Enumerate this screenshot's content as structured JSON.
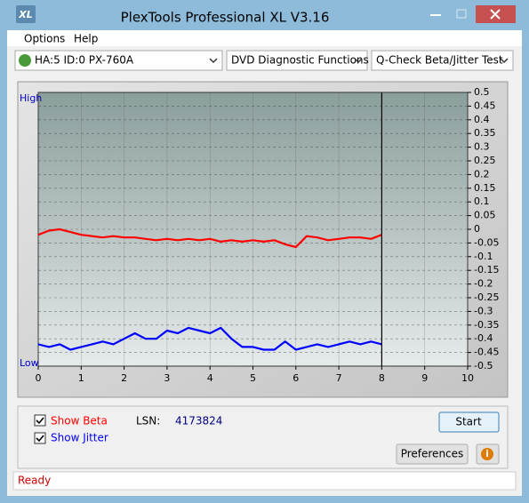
{
  "window": {
    "icon_text": "XL",
    "title": "PlexTools Professional XL V3.16"
  },
  "menu": [
    "Options",
    "Help"
  ],
  "toolbar": {
    "drive": "HA:5 ID:0  PX-760A",
    "function": "DVD Diagnostic Functions",
    "test": "Q-Check Beta/Jitter Test"
  },
  "chart_data": {
    "type": "line",
    "high_label": "High",
    "low_label": "Low",
    "x": [
      0,
      0.25,
      0.5,
      0.75,
      1,
      1.25,
      1.5,
      1.75,
      2,
      2.25,
      2.5,
      2.75,
      3,
      3.25,
      3.5,
      3.75,
      4,
      4.25,
      4.5,
      4.75,
      5,
      5.25,
      5.5,
      5.75,
      6,
      6.25,
      6.5,
      6.75,
      7,
      7.25,
      7.5,
      7.75,
      8
    ],
    "series": [
      {
        "name": "Show Beta",
        "color": "#ff0000",
        "values": [
          -0.02,
          -0.005,
          0,
          -0.01,
          -0.02,
          -0.025,
          -0.03,
          -0.025,
          -0.03,
          -0.03,
          -0.035,
          -0.04,
          -0.035,
          -0.04,
          -0.035,
          -0.04,
          -0.035,
          -0.045,
          -0.04,
          -0.045,
          -0.04,
          -0.045,
          -0.04,
          -0.055,
          -0.065,
          -0.025,
          -0.03,
          -0.04,
          -0.035,
          -0.03,
          -0.03,
          -0.035,
          -0.02
        ]
      },
      {
        "name": "Show Jitter",
        "color": "#0000ff",
        "values": [
          -0.42,
          -0.43,
          -0.42,
          -0.44,
          -0.43,
          -0.42,
          -0.41,
          -0.42,
          -0.4,
          -0.38,
          -0.4,
          -0.4,
          -0.37,
          -0.38,
          -0.36,
          -0.37,
          -0.38,
          -0.36,
          -0.4,
          -0.43,
          -0.43,
          -0.44,
          -0.44,
          -0.41,
          -0.44,
          -0.43,
          -0.42,
          -0.43,
          -0.42,
          -0.41,
          -0.42,
          -0.41,
          -0.42
        ]
      }
    ],
    "cursor_x": 8,
    "xlim": [
      0,
      10
    ],
    "xticks": [
      0,
      1,
      2,
      3,
      4,
      5,
      6,
      7,
      8,
      9,
      10
    ],
    "ylim": [
      -0.5,
      0.5
    ],
    "yticks": [
      0.5,
      0.45,
      0.4,
      0.35,
      0.3,
      0.25,
      0.2,
      0.15,
      0.1,
      0.05,
      0,
      -0.05,
      -0.1,
      -0.15,
      -0.2,
      -0.25,
      -0.3,
      -0.35,
      -0.4,
      -0.45,
      -0.5
    ],
    "grid": true
  },
  "controls": {
    "lsn_label": "LSN:",
    "lsn_value": "4173824",
    "start": "Start",
    "preferences": "Preferences",
    "info": "i"
  },
  "status": "Ready"
}
